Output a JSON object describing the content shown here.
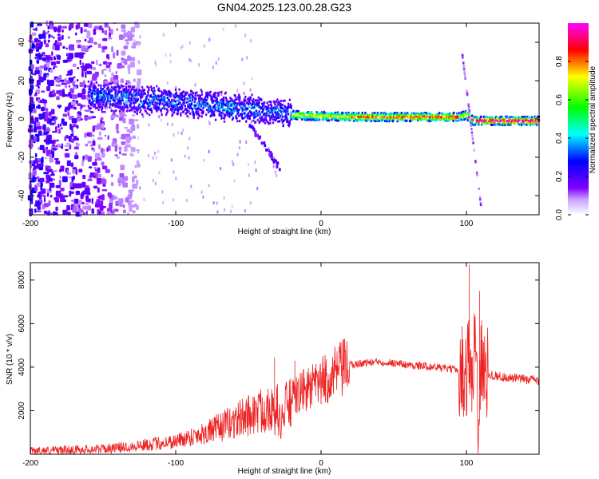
{
  "title": "GN04.2025.123.00.28.G23",
  "chart_data": [
    {
      "type": "heatmap",
      "title": "GN04.2025.123.00.28.G23",
      "xlabel": "Height of straight line (km)",
      "ylabel": "Frequency (Hz)",
      "xlim": [
        -200,
        150
      ],
      "ylim": [
        -50,
        50
      ],
      "xticks": [
        -200,
        -100,
        0,
        100
      ],
      "yticks": [
        -40,
        -20,
        0,
        20,
        40
      ],
      "colorbar": {
        "label": "Normalized spectral amplitude",
        "range": [
          0,
          1
        ],
        "ticks": [
          0.0,
          0.2,
          0.4,
          0.6,
          0.8
        ],
        "colormap": [
          "#ffffff",
          "#7f00ff",
          "#0000ff",
          "#00ffff",
          "#00ff00",
          "#ffff00",
          "#ff0000",
          "#ff00ff"
        ]
      },
      "ridge": {
        "x": [
          -150,
          -125,
          -100,
          -75,
          -50,
          -25,
          -20,
          0,
          20,
          40,
          60,
          80,
          95,
          100,
          105,
          120,
          150
        ],
        "y": [
          12,
          10,
          9,
          7,
          5,
          3,
          2,
          1.5,
          1,
          1,
          1,
          1,
          1,
          2,
          -1,
          -1,
          -1
        ]
      },
      "grid": false
    },
    {
      "type": "line",
      "xlabel": "Height of straight line (km)",
      "ylabel": "SNR (10 * v/v)",
      "xlim": [
        -200,
        150
      ],
      "ylim": [
        0,
        8800
      ],
      "xticks": [
        -200,
        -100,
        0,
        100
      ],
      "yticks": [
        2000,
        4000,
        6000,
        8000
      ],
      "color": "#ee2222",
      "x": [
        -200,
        -175,
        -150,
        -140,
        -125,
        -100,
        -90,
        -75,
        -60,
        -50,
        -40,
        -35,
        -32,
        -30,
        -28,
        -25,
        -20,
        -15,
        -10,
        -5,
        0,
        10,
        20,
        30,
        40,
        50,
        60,
        70,
        80,
        90,
        95,
        100,
        102,
        104,
        106,
        108,
        110,
        112,
        115,
        120,
        130,
        140,
        150
      ],
      "y": [
        150,
        200,
        250,
        300,
        400,
        600,
        800,
        1100,
        1500,
        1800,
        2000,
        2400,
        1500,
        2200,
        1300,
        2100,
        2500,
        2800,
        3000,
        3100,
        3300,
        3700,
        4100,
        4200,
        4250,
        4200,
        4100,
        4050,
        4000,
        3900,
        3850,
        3700,
        5000,
        2500,
        6500,
        1500,
        4500,
        3500,
        3700,
        3600,
        3500,
        3450,
        3400
      ],
      "peaks": [
        {
          "x": -32,
          "y": 4450
        },
        {
          "x": -18,
          "y": 4300
        },
        {
          "x": 102,
          "y": 8700
        },
        {
          "x": 109,
          "y": 7500
        }
      ],
      "grid": false
    }
  ]
}
